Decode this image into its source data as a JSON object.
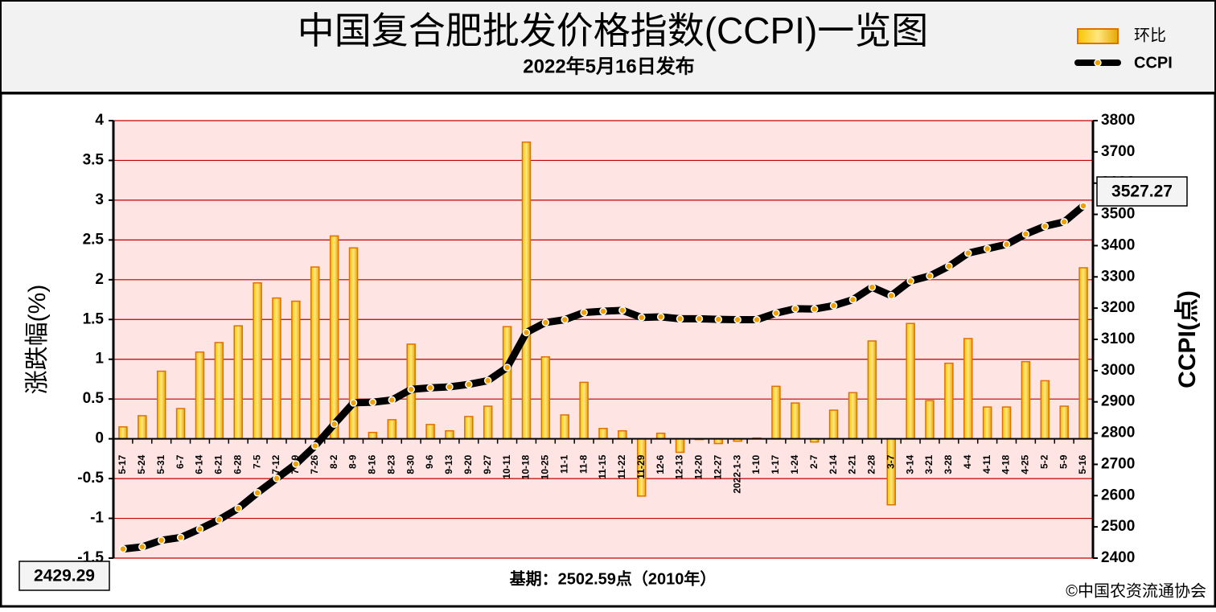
{
  "chart_data": {
    "type": "bar-line",
    "title": "中国复合肥批发价格指数(CCPI)一览图",
    "subtitle": "2022年5月16日发布",
    "y_label": "涨跌幅(%)",
    "y2_label": "CCPI(点)",
    "footnote": "基期：2502.59点（2010年）",
    "source": "©中国农资流通协会",
    "categories": [
      "5-17",
      "5-24",
      "5-31",
      "6-7",
      "6-14",
      "6-21",
      "6-28",
      "7-5",
      "7-12",
      "7-19",
      "7-26",
      "8-2",
      "8-9",
      "8-16",
      "8-23",
      "8-30",
      "9-6",
      "9-13",
      "9-20",
      "9-27",
      "10-11",
      "10-18",
      "10-25",
      "11-1",
      "11-8",
      "11-15",
      "11-22",
      "11-29",
      "12-6",
      "12-13",
      "12-20",
      "12-27",
      "2022-1-3",
      "1-10",
      "1-17",
      "1-24",
      "2-7",
      "2-14",
      "2-21",
      "2-28",
      "3-7",
      "3-14",
      "3-21",
      "3-28",
      "4-4",
      "4-11",
      "4-18",
      "4-25",
      "5-2",
      "5-9",
      "5-16"
    ],
    "series": [
      {
        "name": "环比",
        "type": "bar",
        "color": "#f0b400",
        "values": [
          0.15,
          0.29,
          0.85,
          0.38,
          1.09,
          1.21,
          1.42,
          1.96,
          1.77,
          1.73,
          2.16,
          2.55,
          2.4,
          0.08,
          0.24,
          1.19,
          0.18,
          0.1,
          0.28,
          0.41,
          1.41,
          3.73,
          1.03,
          0.3,
          0.71,
          0.13,
          0.1,
          -0.72,
          0.07,
          -0.17,
          -0.01,
          -0.06,
          -0.03,
          0.01,
          0.66,
          0.45,
          -0.04,
          0.36,
          0.58,
          1.23,
          -0.83,
          1.45,
          0.48,
          0.95,
          1.26,
          0.4,
          0.4,
          0.97,
          0.73,
          0.41,
          2.15
        ]
      },
      {
        "name": "CCPI",
        "type": "line",
        "axis": "y2",
        "color": "#000000",
        "values": [
          2429.29,
          2436,
          2457,
          2466,
          2493,
          2523,
          2559,
          2609,
          2655,
          2701,
          2759,
          2829,
          2897,
          2899,
          2906,
          2940,
          2945,
          2948,
          2956,
          2968,
          3010,
          3122,
          3154,
          3163,
          3186,
          3190,
          3193,
          3170,
          3172,
          3166,
          3166,
          3164,
          3163,
          3163,
          3184,
          3198,
          3197,
          3208,
          3227,
          3267,
          3240,
          3287,
          3303,
          3334,
          3376,
          3390,
          3404,
          3437,
          3462,
          3476,
          3527.27
        ],
        "value_labels": [
          "2429.29",
          null,
          null,
          null,
          null,
          null,
          null,
          null,
          null,
          null,
          null,
          null,
          null,
          null,
          null,
          null,
          null,
          null,
          null,
          null,
          null,
          null,
          null,
          null,
          null,
          null,
          null,
          null,
          null,
          null,
          null,
          null,
          null,
          null,
          null,
          null,
          null,
          null,
          null,
          null,
          null,
          null,
          null,
          null,
          null,
          null,
          null,
          null,
          null,
          null,
          "3527.27"
        ]
      }
    ],
    "ylim": [
      -1.5,
      4
    ],
    "yticks": [
      -1.5,
      -1,
      -0.5,
      0,
      0.5,
      1,
      1.5,
      2,
      2.5,
      3,
      3.5,
      4
    ],
    "y2lim": [
      2400,
      3800
    ],
    "y2ticks": [
      2400,
      2500,
      2600,
      2700,
      2800,
      2900,
      3000,
      3100,
      3200,
      3300,
      3400,
      3500,
      3600,
      3700,
      3800
    ],
    "grid": true
  }
}
